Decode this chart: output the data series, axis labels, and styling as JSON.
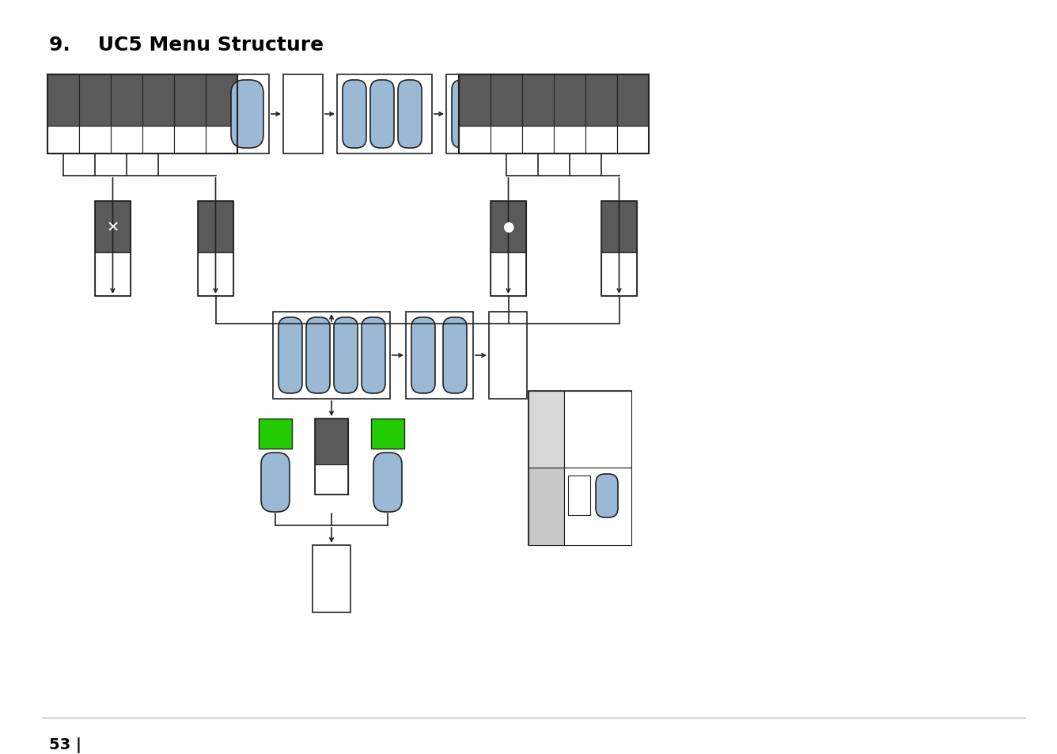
{
  "title": "9.    UC5 Menu Structure",
  "title_fontsize": 18,
  "bg_color": "#ffffff",
  "dark_gray": "#5a5a5a",
  "medium_gray": "#808080",
  "light_gray": "#c8c8c8",
  "lighter_gray": "#d8d8d8",
  "blue_fill": "#9bb8d4",
  "green_fill": "#22cc00",
  "line_color": "#222222",
  "page_number": "53 |"
}
